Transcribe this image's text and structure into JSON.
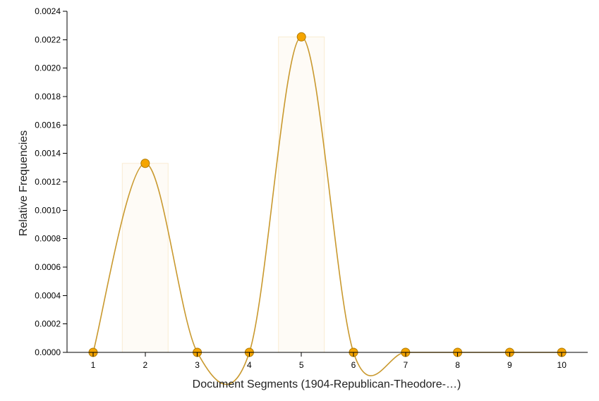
{
  "chart_data": {
    "type": "bar",
    "xlabel": "Document Segments (1904-Republican-Theodore-…)",
    "ylabel": "Relative Frequencies",
    "categories": [
      "1",
      "2",
      "3",
      "4",
      "5",
      "6",
      "7",
      "8",
      "9",
      "10"
    ],
    "values": [
      0,
      0.00133,
      0,
      0,
      0.00222,
      0,
      0,
      0,
      0,
      0
    ],
    "ylim": [
      0,
      0.0024
    ],
    "yticks": [
      "0.0000",
      "0.0002",
      "0.0004",
      "0.0006",
      "0.0008",
      "0.0010",
      "0.0012",
      "0.0014",
      "0.0016",
      "0.0018",
      "0.0020",
      "0.0022",
      "0.0024"
    ],
    "grid": false,
    "legend": "none",
    "overlay": "smoothed line with markers over bars",
    "colors": {
      "line": "#c9992e",
      "marker_fill": "#f5a500",
      "marker_stroke": "#b07a00",
      "bar": "#f5deb3",
      "axis": "#000000"
    }
  }
}
